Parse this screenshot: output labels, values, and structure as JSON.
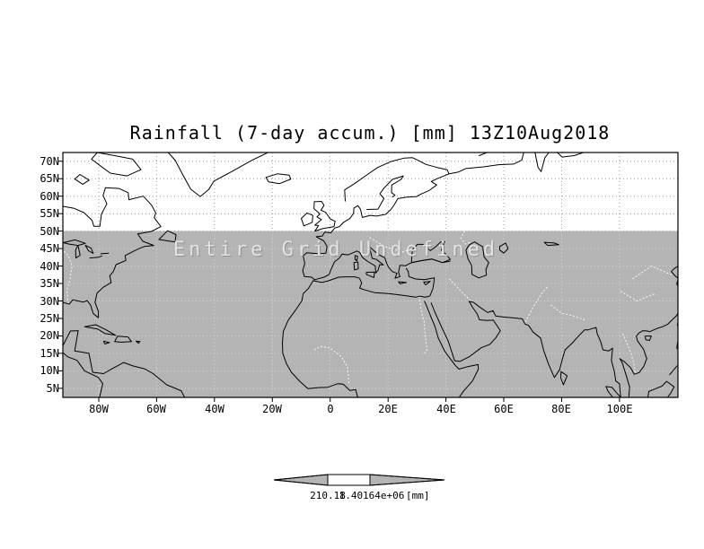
{
  "title": "Rainfall (7-day accum.) [mm] 13Z10Aug2018",
  "annotation": "Entire Grid Undefined",
  "axes": {
    "y_ticks": [
      "70N",
      "65N",
      "60N",
      "55N",
      "50N",
      "45N",
      "40N",
      "35N",
      "30N",
      "25N",
      "20N",
      "15N",
      "10N",
      "5N"
    ],
    "x_ticks": [
      "80W",
      "60W",
      "40W",
      "20W",
      "0",
      "20E",
      "40E",
      "60E",
      "80E",
      "100E"
    ]
  },
  "colorbar": {
    "labels": [
      "210.18",
      "1.40164e+06"
    ],
    "units": "[mm]"
  },
  "colors": {
    "background": "#ffffff",
    "undefined_shade": "#b4b4b4",
    "coastline": "#000000"
  },
  "chart_data": {
    "type": "heatmap",
    "title": "Rainfall (7-day accum.) [mm] 13Z10Aug2018",
    "variable": "Rainfall (7-day accum.)",
    "units": "mm",
    "valid_time": "13Z10Aug2018",
    "projection": "lat-lon map",
    "lat_ticks": [
      "5N",
      "10N",
      "15N",
      "20N",
      "25N",
      "30N",
      "35N",
      "40N",
      "45N",
      "50N",
      "55N",
      "60N",
      "65N",
      "70N"
    ],
    "lon_ticks": [
      "80W",
      "60W",
      "40W",
      "20W",
      "0",
      "20E",
      "40E",
      "60E",
      "80E",
      "100E"
    ],
    "values": null,
    "status": "Entire Grid Undefined",
    "shaded_region": "entire grid below 50N shaded grey (undefined data)",
    "colorbar_values": [
      210.18,
      1401640
    ],
    "legend_position": "bottom-center",
    "grid": "dotted lat-lon graticule every 20 deg lon / 5 deg lat"
  }
}
